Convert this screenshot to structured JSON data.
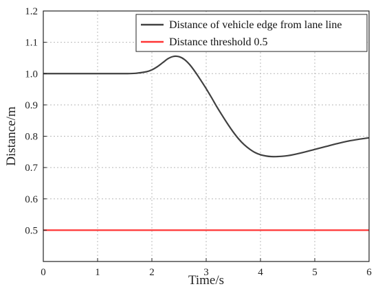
{
  "chart_data": {
    "type": "line",
    "xlabel": "Time/s",
    "ylabel": "Distance/m",
    "xlim": [
      0,
      6
    ],
    "ylim": [
      0.4,
      1.2
    ],
    "xticks": [
      "0",
      "1",
      "2",
      "3",
      "4",
      "5",
      "6"
    ],
    "yticks": [
      "0.5",
      "0.6",
      "0.7",
      "0.8",
      "0.9",
      "1.0",
      "1.1",
      "1.2"
    ],
    "grid": true,
    "legend_position": "top-right",
    "series": [
      {
        "name": "Distance of vehicle edge from lane line",
        "color": "#404040",
        "x": [
          0,
          0.5,
          1.0,
          1.5,
          1.7,
          1.9,
          2.0,
          2.1,
          2.2,
          2.3,
          2.4,
          2.5,
          2.6,
          2.7,
          2.8,
          2.9,
          3.0,
          3.1,
          3.2,
          3.3,
          3.4,
          3.5,
          3.6,
          3.7,
          3.8,
          3.9,
          4.0,
          4.1,
          4.2,
          4.3,
          4.4,
          4.5,
          4.6,
          4.8,
          5.0,
          5.2,
          5.4,
          5.6,
          5.8,
          6.0
        ],
        "y": [
          1.0,
          1.0,
          1.0,
          1.0,
          1.001,
          1.006,
          1.012,
          1.022,
          1.035,
          1.048,
          1.055,
          1.054,
          1.045,
          1.028,
          1.005,
          0.979,
          0.952,
          0.923,
          0.893,
          0.865,
          0.838,
          0.813,
          0.791,
          0.773,
          0.759,
          0.748,
          0.741,
          0.737,
          0.735,
          0.735,
          0.736,
          0.738,
          0.741,
          0.749,
          0.758,
          0.767,
          0.776,
          0.784,
          0.79,
          0.795
        ]
      },
      {
        "name": "Distance threshold 0.5",
        "color": "#ff3333",
        "x": [
          0,
          6
        ],
        "y": [
          0.5,
          0.5
        ]
      }
    ]
  }
}
